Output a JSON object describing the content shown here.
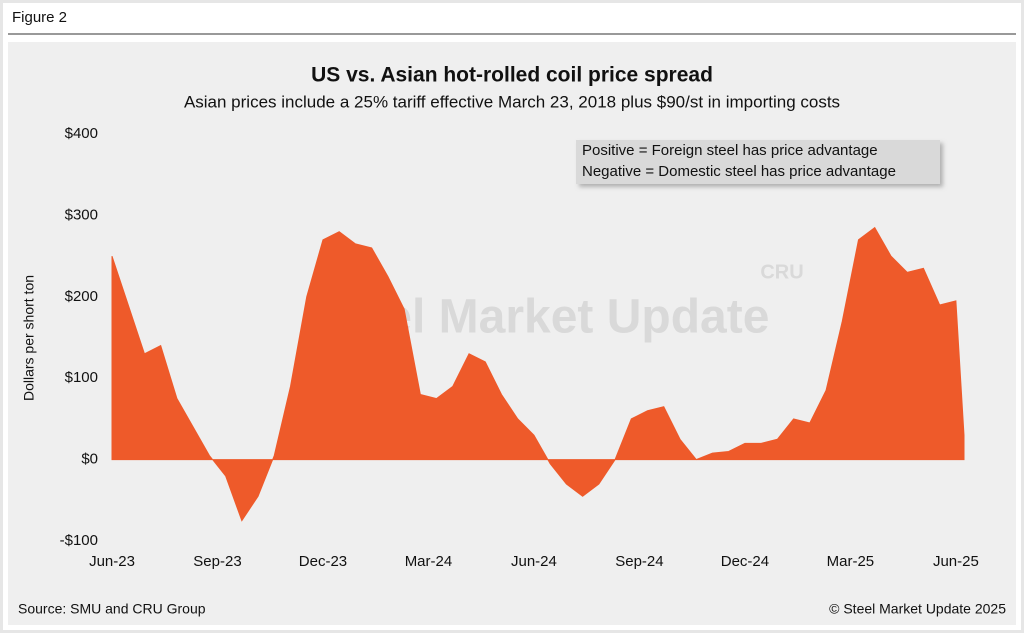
{
  "figure_label": "Figure 2",
  "chart_data": {
    "type": "area",
    "title": "US vs. Asian hot-rolled coil price spread",
    "subtitle": "Asian prices include a 25% tariff effective March 23, 2018 plus $90/st in importing costs",
    "y_label": "Dollars per short ton",
    "annotations": [
      "Positive = Foreign steel has price advantage",
      "Negative = Domestic steel has price advantage"
    ],
    "watermark": [
      "Steel Market Update",
      "CRU"
    ],
    "source": "Source: SMU and CRU Group",
    "copyright": "© Steel Market Update 2025",
    "color": "#ee5a2a",
    "x": [
      0,
      2,
      4,
      6,
      8,
      10,
      12,
      14,
      16,
      18,
      20,
      22,
      24,
      26,
      28,
      30,
      32,
      34,
      36,
      38,
      40,
      42,
      44,
      46,
      48,
      50,
      52,
      54,
      56,
      58,
      60,
      62,
      64,
      66,
      68,
      70,
      72,
      74,
      76,
      78,
      80,
      82,
      84,
      86,
      88,
      90,
      92,
      94,
      96,
      98,
      100,
      102,
      104,
      105
    ],
    "values": [
      250,
      190,
      130,
      140,
      75,
      40,
      5,
      -20,
      -75,
      -45,
      5,
      90,
      200,
      270,
      280,
      265,
      260,
      225,
      185,
      80,
      75,
      90,
      130,
      120,
      80,
      50,
      30,
      -5,
      -30,
      -45,
      -30,
      0,
      50,
      60,
      65,
      25,
      0,
      8,
      10,
      20,
      20,
      25,
      50,
      45,
      85,
      170,
      270,
      285,
      250,
      230,
      235,
      190,
      195,
      30
    ],
    "xlim": [
      0,
      105
    ],
    "xticks": [
      {
        "value": 0,
        "label": "Jun-23"
      },
      {
        "value": 13,
        "label": "Sep-23"
      },
      {
        "value": 26,
        "label": "Dec-23"
      },
      {
        "value": 39,
        "label": "Mar-24"
      },
      {
        "value": 52,
        "label": "Jun-24"
      },
      {
        "value": 65,
        "label": "Sep-24"
      },
      {
        "value": 78,
        "label": "Dec-24"
      },
      {
        "value": 91,
        "label": "Mar-25"
      },
      {
        "value": 104,
        "label": "Jun-25"
      }
    ],
    "ylim": [
      -100,
      400
    ],
    "yticks": [
      {
        "value": 400,
        "label": "$400"
      },
      {
        "value": 300,
        "label": "$300"
      },
      {
        "value": 200,
        "label": "$200"
      },
      {
        "value": 100,
        "label": "$100"
      },
      {
        "value": 0,
        "label": "$0"
      },
      {
        "value": -100,
        "label": "-$100"
      }
    ]
  }
}
